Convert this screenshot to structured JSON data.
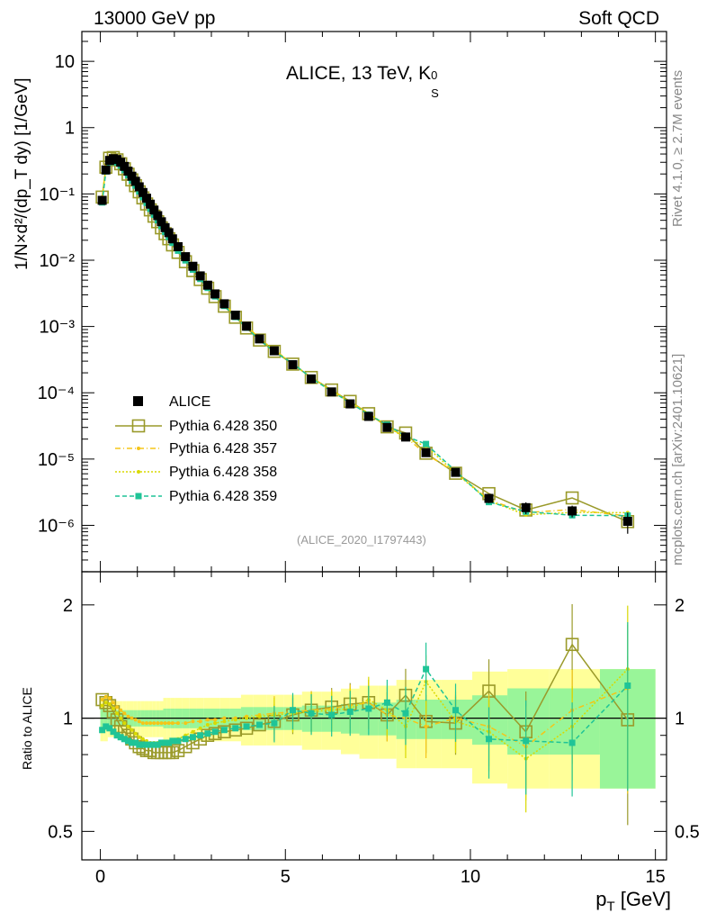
{
  "header": {
    "left": "13000 GeV pp",
    "right": "Soft QCD"
  },
  "side_labels": {
    "rivet": "Rivet 4.1.0, ≥ 2.7M events",
    "mcplots": "mcplots.cern.ch [arXiv:2401.10621]"
  },
  "chart_data": [
    {
      "type": "scatter",
      "title": "ALICE, 13 TeV, K",
      "title_sub": "S",
      "title_sup": "0",
      "reference_label": "(ALICE_2020_I1797443)",
      "xlabel": "p",
      "xlabel_sub": "T",
      "xlabel_unit": " [GeV]",
      "ylabel": "1/N×d²/(dp_T dy) [1/GeV]",
      "yscale": "log",
      "xlim": [
        -0.5,
        15.3
      ],
      "ylim_exp": [
        -6.7,
        1.45
      ],
      "ytick_labels": [
        "10",
        "1",
        "10⁻¹",
        "10⁻²",
        "10⁻³",
        "10⁻⁴",
        "10⁻⁵",
        "10⁻⁶"
      ],
      "legend": [
        "ALICE",
        "Pythia 6.428 350",
        "Pythia 6.428 357",
        "Pythia 6.428 358",
        "Pythia 6.428 359"
      ],
      "x": [
        0.05,
        0.15,
        0.25,
        0.35,
        0.45,
        0.55,
        0.65,
        0.75,
        0.85,
        0.95,
        1.05,
        1.15,
        1.25,
        1.35,
        1.45,
        1.55,
        1.65,
        1.75,
        1.85,
        1.95,
        2.1,
        2.3,
        2.5,
        2.7,
        2.9,
        3.1,
        3.35,
        3.65,
        3.95,
        4.3,
        4.7,
        5.2,
        5.7,
        6.25,
        6.75,
        7.25,
        7.75,
        8.25,
        8.8,
        9.6,
        10.5,
        11.5,
        12.75,
        14.25
      ],
      "alice": [
        0.08,
        0.23,
        0.32,
        0.34,
        0.33,
        0.3,
        0.26,
        0.22,
        0.185,
        0.155,
        0.128,
        0.105,
        0.086,
        0.07,
        0.057,
        0.047,
        0.038,
        0.031,
        0.026,
        0.021,
        0.016,
        0.0113,
        0.0081,
        0.0058,
        0.0042,
        0.0031,
        0.0022,
        0.00148,
        0.00101,
        0.00065,
        0.00043,
        0.000265,
        0.000162,
        0.000103,
        6.8e-05,
        4.4e-05,
        3e-05,
        2.15e-05,
        1.25e-05,
        6.3e-06,
        2.55e-06,
        1.85e-06,
        1.65e-06,
        1.15e-06
      ],
      "alice_rel_err": [
        0.06,
        0.06,
        0.05,
        0.05,
        0.05,
        0.05,
        0.05,
        0.05,
        0.05,
        0.05,
        0.05,
        0.05,
        0.05,
        0.05,
        0.05,
        0.05,
        0.05,
        0.06,
        0.06,
        0.06,
        0.06,
        0.06,
        0.06,
        0.06,
        0.06,
        0.06,
        0.06,
        0.06,
        0.07,
        0.07,
        0.07,
        0.07,
        0.08,
        0.08,
        0.09,
        0.1,
        0.1,
        0.12,
        0.12,
        0.12,
        0.15,
        0.2,
        0.2,
        0.35
      ]
    },
    {
      "type": "scatter",
      "ylabel": "Ratio to ALICE",
      "yscale": "log",
      "ylim": [
        0.42,
        2.45
      ],
      "ytick_labels": [
        "2",
        "1",
        "0.5"
      ],
      "series": [
        {
          "name": "Pythia 6.428 350",
          "color": "#9a9a2a",
          "style": "solid",
          "marker": "open-square",
          "values": [
            1.12,
            1.1,
            1.08,
            1.04,
            0.99,
            0.95,
            0.92,
            0.9,
            0.88,
            0.86,
            0.84,
            0.83,
            0.82,
            0.82,
            0.81,
            0.81,
            0.81,
            0.81,
            0.81,
            0.81,
            0.82,
            0.84,
            0.86,
            0.88,
            0.9,
            0.91,
            0.92,
            0.93,
            0.94,
            0.96,
            0.98,
            1.02,
            1.05,
            1.07,
            1.09,
            1.1,
            1.02,
            1.15,
            0.98,
            0.97,
            1.18,
            0.92,
            1.57,
            0.99
          ]
        },
        {
          "name": "Pythia 6.428 357",
          "color": "#f5c518",
          "style": "dashdot",
          "marker": "small-dot",
          "values": [
            1.12,
            1.14,
            1.13,
            1.1,
            1.07,
            1.05,
            1.03,
            1.01,
            1.0,
            0.99,
            0.98,
            0.97,
            0.97,
            0.97,
            0.97,
            0.97,
            0.97,
            0.97,
            0.97,
            0.97,
            0.97,
            0.97,
            0.98,
            0.98,
            0.99,
            0.99,
            1.0,
            1.0,
            1.01,
            1.02,
            1.03,
            1.04,
            1.05,
            1.06,
            1.08,
            1.1,
            1.02,
            1.0,
            0.95,
            1.0,
            0.95,
            0.84,
            1.05,
            1.2
          ]
        },
        {
          "name": "Pythia 6.428 358",
          "color": "#d9d900",
          "style": "dotted",
          "marker": "small-dot",
          "values": [
            1.08,
            1.1,
            1.09,
            1.06,
            1.03,
            1.0,
            0.97,
            0.95,
            0.93,
            0.91,
            0.89,
            0.88,
            0.87,
            0.86,
            0.86,
            0.86,
            0.86,
            0.86,
            0.86,
            0.87,
            0.88,
            0.9,
            0.92,
            0.94,
            0.96,
            0.97,
            0.98,
            0.99,
            1.0,
            1.01,
            1.02,
            1.03,
            1.04,
            1.05,
            1.06,
            1.12,
            1.05,
            0.95,
            1.25,
            0.98,
            0.92,
            0.78,
            0.95,
            1.35
          ]
        },
        {
          "name": "Pythia 6.428 359",
          "color": "#1fc497",
          "style": "dashed",
          "marker": "filled-square",
          "values": [
            0.93,
            0.95,
            0.94,
            0.92,
            0.9,
            0.89,
            0.88,
            0.87,
            0.86,
            0.86,
            0.85,
            0.85,
            0.85,
            0.85,
            0.85,
            0.85,
            0.86,
            0.86,
            0.86,
            0.87,
            0.87,
            0.88,
            0.89,
            0.9,
            0.91,
            0.92,
            0.93,
            0.94,
            0.95,
            0.96,
            0.97,
            1.05,
            1.03,
            1.02,
            1.04,
            1.06,
            1.1,
            1.03,
            1.35,
            1.05,
            0.88,
            0.87,
            0.86,
            1.22
          ]
        }
      ]
    }
  ]
}
